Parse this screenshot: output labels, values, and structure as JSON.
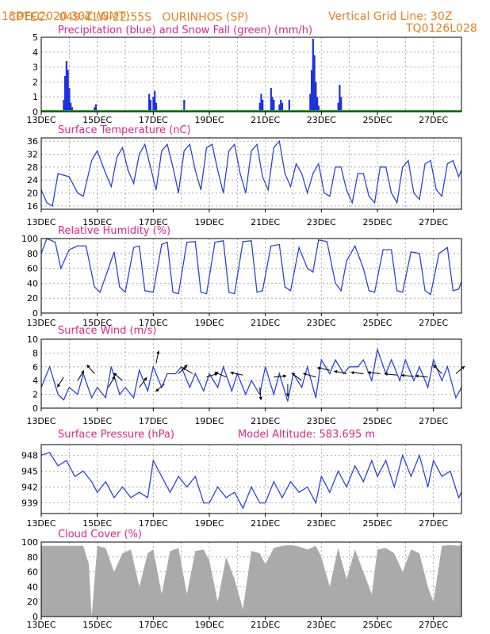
{
  "header": {
    "source_label": "CPTEC:",
    "location": "049:41W-22:55S   OURINHOS (SP)",
    "run_date": "13DEC2020 30Z (GMT)",
    "vertical_grid": "Vertical Grid Line: 30Z",
    "model_code": "TQ0126L028"
  },
  "x_tick_labels": [
    "13DEC",
    "15DEC",
    "17DEC",
    "19DEC",
    "21DEC",
    "23DEC",
    "25DEC",
    "27DEC"
  ],
  "x_range_days": [
    13,
    28
  ],
  "colors": {
    "precip": "#2030e0",
    "snow": "#10a010",
    "line": "#2b45d8",
    "cloud": "#aaaaaa",
    "title": "#e0248a",
    "header": "#e8801e"
  },
  "chart_data": [
    {
      "id": "precip",
      "type": "bar",
      "title": "Precipitation (blue) and Snow Fall (green) (mm/h)",
      "ylim": [
        0,
        5
      ],
      "yticks": [
        "0",
        "1",
        "2",
        "3",
        "4",
        "5"
      ],
      "x": [
        13.8,
        13.85,
        13.9,
        13.95,
        14.0,
        14.05,
        14.1,
        14.9,
        14.95,
        16.85,
        16.9,
        17.0,
        17.05,
        17.1,
        18.1,
        20.8,
        20.85,
        20.9,
        21.2,
        21.25,
        21.3,
        21.5,
        21.55,
        21.6,
        21.85,
        22.6,
        22.65,
        22.7,
        22.75,
        22.8,
        22.85,
        22.9,
        23.6,
        23.65,
        23.7
      ],
      "values": [
        0.8,
        2.4,
        3.4,
        2.8,
        1.6,
        0.6,
        0.3,
        0.3,
        0.5,
        1.2,
        0.8,
        1.0,
        1.4,
        0.6,
        0.8,
        0.6,
        1.2,
        0.8,
        1.6,
        1.0,
        0.8,
        0.5,
        0.8,
        0.6,
        0.8,
        1.2,
        2.8,
        4.9,
        3.8,
        2.0,
        1.0,
        0.4,
        0.6,
        1.8,
        1.0
      ],
      "snow": 0
    },
    {
      "id": "temp",
      "type": "line",
      "title": "Surface Temperature (nC)",
      "ylim": [
        15,
        37
      ],
      "yticks": [
        "16",
        "20",
        "24",
        "28",
        "32",
        "36"
      ],
      "ytick_values": [
        16,
        20,
        24,
        28,
        32,
        36
      ],
      "x": [
        13.0,
        13.2,
        13.4,
        13.6,
        14.0,
        14.3,
        14.5,
        14.8,
        15.0,
        15.3,
        15.5,
        15.7,
        15.9,
        16.1,
        16.3,
        16.5,
        16.7,
        16.9,
        17.1,
        17.3,
        17.5,
        17.7,
        17.9,
        18.1,
        18.3,
        18.5,
        18.7,
        18.9,
        19.1,
        19.3,
        19.5,
        19.7,
        19.9,
        20.1,
        20.3,
        20.5,
        20.7,
        20.9,
        21.1,
        21.3,
        21.5,
        21.7,
        21.9,
        22.1,
        22.3,
        22.5,
        22.7,
        22.9,
        23.1,
        23.3,
        23.5,
        23.7,
        23.9,
        24.1,
        24.3,
        24.5,
        24.7,
        24.9,
        25.1,
        25.3,
        25.5,
        25.7,
        25.9,
        26.1,
        26.3,
        26.5,
        26.7,
        26.9,
        27.1,
        27.3,
        27.5,
        27.7,
        27.9,
        28.0
      ],
      "values": [
        21,
        17,
        16,
        26,
        25,
        20,
        19,
        30,
        33,
        26,
        22,
        31,
        34,
        27,
        23,
        32,
        35,
        28,
        21,
        33,
        35,
        28,
        20,
        33,
        35,
        27,
        21,
        34,
        35,
        27,
        20,
        33,
        35,
        26,
        20,
        33,
        35,
        25,
        21,
        34,
        36,
        26,
        22,
        29,
        26,
        20,
        26,
        29,
        20,
        19,
        28,
        28,
        21,
        17,
        26,
        26,
        19,
        17,
        28,
        28,
        20,
        17,
        28,
        30,
        20,
        18,
        29,
        30,
        21,
        19,
        29,
        30,
        25,
        27
      ]
    },
    {
      "id": "rh",
      "type": "line",
      "title": "Relative Humidity (%)",
      "ylim": [
        0,
        100
      ],
      "yticks": [
        "0",
        "20",
        "40",
        "60",
        "80",
        "100"
      ],
      "ytick_values": [
        0,
        20,
        40,
        60,
        80,
        100
      ],
      "x": [
        13.0,
        13.2,
        13.5,
        13.7,
        14.0,
        14.3,
        14.6,
        14.9,
        15.1,
        15.4,
        15.6,
        15.8,
        16.0,
        16.3,
        16.5,
        16.7,
        17.0,
        17.3,
        17.5,
        17.7,
        17.9,
        18.2,
        18.5,
        18.7,
        18.9,
        19.2,
        19.5,
        19.7,
        19.9,
        20.2,
        20.5,
        20.7,
        20.9,
        21.2,
        21.5,
        21.7,
        21.9,
        22.2,
        22.5,
        22.7,
        22.9,
        23.2,
        23.5,
        23.7,
        23.9,
        24.2,
        24.5,
        24.7,
        24.9,
        25.2,
        25.5,
        25.7,
        25.9,
        26.2,
        26.5,
        26.7,
        26.9,
        27.2,
        27.5,
        27.7,
        27.9,
        28.0
      ],
      "values": [
        80,
        100,
        95,
        60,
        85,
        90,
        90,
        35,
        28,
        60,
        82,
        35,
        28,
        88,
        90,
        30,
        28,
        92,
        95,
        28,
        26,
        95,
        96,
        28,
        26,
        95,
        97,
        28,
        26,
        96,
        97,
        28,
        30,
        90,
        92,
        35,
        30,
        88,
        60,
        55,
        98,
        96,
        40,
        30,
        70,
        90,
        60,
        30,
        28,
        85,
        85,
        30,
        28,
        82,
        80,
        30,
        25,
        80,
        88,
        30,
        32,
        42
      ]
    },
    {
      "id": "wind",
      "type": "line",
      "title": "Surface Wind (m/s)",
      "ylim": [
        0,
        10
      ],
      "yticks": [
        "0",
        "2",
        "4",
        "6",
        "8",
        "10"
      ],
      "ytick_values": [
        0,
        2,
        4,
        6,
        8,
        10
      ],
      "x": [
        13.0,
        13.3,
        13.6,
        13.8,
        14.0,
        14.3,
        14.5,
        14.8,
        15.0,
        15.3,
        15.5,
        15.8,
        16.0,
        16.3,
        16.5,
        16.8,
        17.0,
        17.3,
        17.5,
        17.8,
        18.0,
        18.3,
        18.5,
        18.8,
        19.0,
        19.3,
        19.5,
        19.8,
        20.0,
        20.3,
        20.5,
        20.8,
        21.0,
        21.3,
        21.5,
        21.8,
        22.0,
        22.3,
        22.5,
        22.8,
        23.0,
        23.3,
        23.5,
        23.8,
        24.0,
        24.3,
        24.5,
        24.8,
        25.0,
        25.3,
        25.5,
        25.8,
        26.0,
        26.3,
        26.5,
        26.8,
        27.0,
        27.3,
        27.5,
        27.8,
        28.0
      ],
      "values": [
        3,
        6,
        2,
        1.2,
        3,
        2,
        5,
        1.5,
        3,
        1.5,
        6,
        2,
        3,
        1.5,
        5.5,
        2.5,
        6,
        3,
        5,
        5,
        6,
        3,
        5,
        2.5,
        5,
        3,
        6,
        2.5,
        5,
        2,
        4,
        2,
        6,
        2,
        5,
        1,
        5,
        3,
        6,
        1.5,
        7,
        5,
        7,
        5,
        6,
        6,
        7,
        4,
        8.5,
        5,
        7,
        4,
        7,
        4,
        6,
        3,
        7,
        4,
        6,
        1.5,
        3
      ],
      "arrows": [
        {
          "x": 13.8,
          "y": 4.5,
          "u": -0.5,
          "v": -0.8
        },
        {
          "x": 14.3,
          "y": 4,
          "u": 0.5,
          "v": 0.8
        },
        {
          "x": 14.9,
          "y": 5,
          "u": -0.6,
          "v": 0.7
        },
        {
          "x": 15.4,
          "y": 3,
          "u": 0.5,
          "v": 0.9
        },
        {
          "x": 15.9,
          "y": 4,
          "u": -0.7,
          "v": 0.6
        },
        {
          "x": 16.5,
          "y": 3,
          "u": 0.6,
          "v": 0.8
        },
        {
          "x": 17.1,
          "y": 6.5,
          "u": 0.2,
          "v": 1.0
        },
        {
          "x": 17.4,
          "y": 3.5,
          "u": -0.7,
          "v": -0.6
        },
        {
          "x": 17.9,
          "y": 5,
          "u": 0.7,
          "v": 0.7
        },
        {
          "x": 18.4,
          "y": 5,
          "u": -0.8,
          "v": 0.5
        },
        {
          "x": 18.9,
          "y": 4.5,
          "u": 0.9,
          "v": 0.3
        },
        {
          "x": 19.6,
          "y": 4.5,
          "u": -0.9,
          "v": 0.4
        },
        {
          "x": 20.2,
          "y": 4.8,
          "u": -1.0,
          "v": 0.2
        },
        {
          "x": 20.8,
          "y": 3,
          "u": 0.1,
          "v": -1.0
        },
        {
          "x": 21.3,
          "y": 4.5,
          "u": 1.0,
          "v": 0.1
        },
        {
          "x": 21.8,
          "y": 3.5,
          "u": 0.0,
          "v": -1.0
        },
        {
          "x": 22.3,
          "y": 4,
          "u": -0.8,
          "v": 0.6
        },
        {
          "x": 22.8,
          "y": 4.5,
          "u": -1.0,
          "v": 0.3
        },
        {
          "x": 23.3,
          "y": 5.5,
          "u": -1.0,
          "v": 0.2
        },
        {
          "x": 23.9,
          "y": 5,
          "u": -1.0,
          "v": 0.2
        },
        {
          "x": 24.5,
          "y": 5,
          "u": -1.0,
          "v": 0.1
        },
        {
          "x": 25.1,
          "y": 5,
          "u": -1.0,
          "v": 0.1
        },
        {
          "x": 25.7,
          "y": 4.8,
          "u": -1.0,
          "v": 0.1
        },
        {
          "x": 26.3,
          "y": 4.6,
          "u": -1.0,
          "v": 0.1
        },
        {
          "x": 26.8,
          "y": 4.5,
          "u": -1.0,
          "v": 0.1
        },
        {
          "x": 27.3,
          "y": 5,
          "u": -0.7,
          "v": 0.7
        },
        {
          "x": 27.8,
          "y": 5,
          "u": 0.7,
          "v": 0.6
        }
      ]
    },
    {
      "id": "pressure",
      "type": "line",
      "title": "Surface Pressure (hPa)",
      "subtitle": "Model Altitude: 583.695  m",
      "ylim": [
        937,
        950
      ],
      "yticks": [
        "939",
        "942",
        "945",
        "948"
      ],
      "ytick_values": [
        939,
        942,
        945,
        948
      ],
      "x": [
        13.0,
        13.3,
        13.6,
        13.9,
        14.2,
        14.5,
        14.8,
        15.0,
        15.3,
        15.6,
        15.9,
        16.2,
        16.5,
        16.8,
        17.0,
        17.3,
        17.6,
        17.9,
        18.2,
        18.5,
        18.8,
        19.0,
        19.3,
        19.6,
        19.9,
        20.2,
        20.5,
        20.8,
        21.0,
        21.3,
        21.6,
        21.9,
        22.2,
        22.5,
        22.8,
        23.0,
        23.3,
        23.6,
        23.9,
        24.2,
        24.5,
        24.8,
        25.0,
        25.3,
        25.6,
        25.9,
        26.2,
        26.5,
        26.8,
        27.0,
        27.3,
        27.6,
        27.9,
        28.0
      ],
      "values": [
        948,
        948.5,
        946,
        947,
        944,
        945,
        943,
        941,
        943,
        940,
        942,
        940,
        941,
        940,
        947,
        944,
        941,
        944,
        942,
        944,
        939,
        939,
        942,
        940,
        941,
        938,
        942,
        939,
        939,
        943,
        940,
        943,
        941,
        942,
        939,
        944,
        941,
        945,
        942,
        946,
        943,
        947,
        944,
        947,
        942,
        948,
        944,
        948,
        942,
        947,
        944,
        945,
        940,
        941
      ]
    },
    {
      "id": "cloud",
      "type": "area",
      "title": "Cloud Cover (%)",
      "ylim": [
        0,
        100
      ],
      "yticks": [
        "0",
        "20",
        "40",
        "60",
        "80",
        "100"
      ],
      "ytick_values": [
        0,
        20,
        40,
        60,
        80,
        100
      ],
      "x": [
        13.0,
        13.5,
        14.0,
        14.5,
        14.7,
        14.8,
        15.0,
        15.3,
        15.6,
        15.9,
        16.2,
        16.5,
        16.8,
        17.0,
        17.3,
        17.6,
        17.9,
        18.2,
        18.5,
        18.8,
        19.0,
        19.3,
        19.6,
        19.9,
        20.2,
        20.5,
        20.8,
        21.0,
        21.3,
        21.6,
        21.9,
        22.2,
        22.5,
        22.8,
        23.0,
        23.3,
        23.6,
        23.9,
        24.2,
        24.5,
        24.8,
        25.0,
        25.3,
        25.6,
        25.9,
        26.2,
        26.5,
        26.8,
        27.0,
        27.3,
        27.6,
        27.9,
        28.0
      ],
      "values": [
        95,
        95,
        95,
        95,
        70,
        0,
        95,
        92,
        60,
        85,
        90,
        40,
        85,
        90,
        30,
        88,
        92,
        30,
        88,
        90,
        75,
        20,
        80,
        50,
        10,
        88,
        85,
        70,
        92,
        95,
        96,
        94,
        90,
        95,
        80,
        40,
        92,
        50,
        90,
        60,
        30,
        90,
        92,
        85,
        60,
        90,
        85,
        40,
        20,
        95,
        96,
        95,
        97
      ]
    }
  ]
}
